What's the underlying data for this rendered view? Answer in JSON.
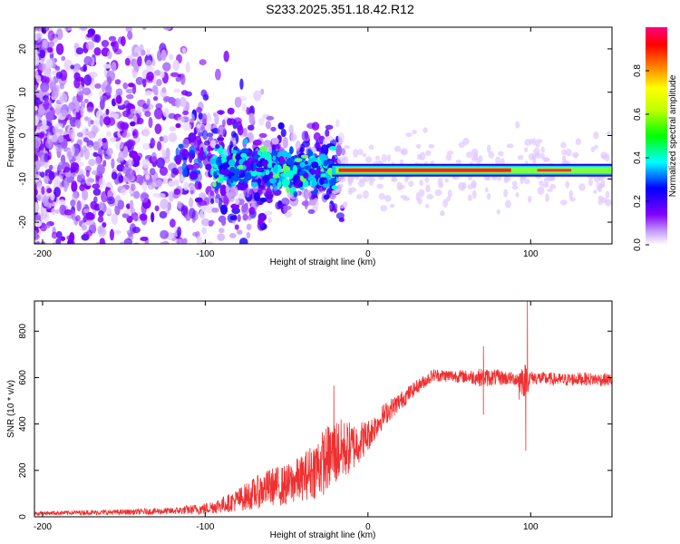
{
  "figure": {
    "title": "S233.2025.351.18.42.R12"
  },
  "chart_data": [
    {
      "type": "heatmap",
      "name": "spectrogram",
      "xlabel": "Height of straight line (km)",
      "ylabel": "Frequency (Hz)",
      "xlim": [
        -205,
        150
      ],
      "ylim": [
        -25,
        25
      ],
      "xticks": [
        -200,
        -100,
        0,
        100
      ],
      "yticks": [
        -20,
        -10,
        0,
        10,
        20
      ],
      "ridge": {
        "description_points_x": [
          -200,
          -140,
          -100,
          -60,
          -20,
          0,
          50,
          90,
          100,
          150
        ],
        "frequency_hz": [
          -3,
          -3,
          -7,
          -8,
          -8,
          -8,
          -8,
          -7,
          -8,
          -8.5
        ]
      },
      "colorbar": {
        "label": "Normalized spectral amplitude",
        "range": [
          0,
          1
        ],
        "ticks": [
          "0.0",
          "0.2",
          "0.4",
          "0.6",
          "0.8"
        ],
        "colors": [
          "#ffffff",
          "#8000ff",
          "#0000ff",
          "#00ffff",
          "#00ff00",
          "#ffff00",
          "#ff8000",
          "#ff0000",
          "#ff0080"
        ]
      }
    },
    {
      "type": "line",
      "name": "snr",
      "xlabel": "Height of straight line (km)",
      "ylabel": "SNR (10 * v/v)",
      "xlim": [
        -205,
        150
      ],
      "ylim": [
        0,
        930
      ],
      "xticks": [
        -200,
        -100,
        0,
        100
      ],
      "yticks": [
        0,
        200,
        400,
        600,
        800
      ],
      "color": "#ee3030",
      "x": [
        -205,
        -180,
        -150,
        -120,
        -100,
        -85,
        -70,
        -60,
        -50,
        -40,
        -30,
        -20,
        -10,
        0,
        10,
        20,
        30,
        40,
        60,
        70,
        80,
        90,
        96,
        98,
        100,
        110,
        120,
        130,
        150
      ],
      "mean": [
        15,
        18,
        20,
        25,
        35,
        60,
        100,
        130,
        135,
        170,
        220,
        280,
        300,
        350,
        440,
        500,
        560,
        610,
        605,
        600,
        600,
        595,
        590,
        590,
        600,
        595,
        590,
        595,
        590
      ],
      "noise": [
        8,
        10,
        12,
        15,
        25,
        40,
        70,
        80,
        90,
        100,
        140,
        150,
        110,
        70,
        50,
        40,
        30,
        28,
        28,
        40,
        35,
        28,
        80,
        60,
        30,
        28,
        28,
        28,
        28
      ],
      "spikes": [
        {
          "x": -21,
          "y": 565
        },
        {
          "x": 71,
          "y": 440
        },
        {
          "x": 71,
          "y": 735
        },
        {
          "x": 97,
          "y": 285
        },
        {
          "x": 98,
          "y": 930
        },
        {
          "x": 93,
          "y": 505
        }
      ]
    }
  ]
}
